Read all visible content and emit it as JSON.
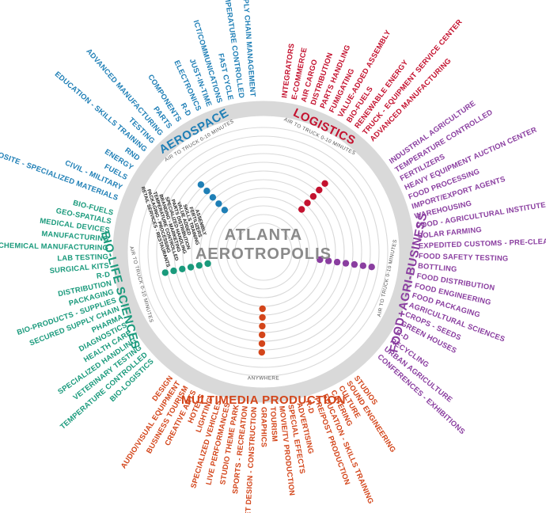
{
  "center": {
    "line1": "ATLANTA",
    "line2": "AEROTROPOLIS"
  },
  "colors": {
    "aerospace": "#1f7fb6",
    "logistics": "#c4122f",
    "food": "#8a3ea0",
    "multimedia": "#d3451a",
    "biolife": "#1a9a7c",
    "ring": "#d9d9d9",
    "inner_label": "#222222"
  },
  "sections": [
    {
      "key": "aerospace",
      "title": "AEROSPACE",
      "subtitle": "AIR TO TRUCK 0-10 MINUTES",
      "dots": 5,
      "labels": [
        "COMPOSITE - SPECIALIZED MATERIALS",
        "CIVIL - MILITARY",
        "FUELS",
        "ENERGY",
        "RND",
        "EDUCATION - SKILLS TRAINING",
        "TESTING",
        "ADVANCED MANUFACTURING",
        "PARTS",
        "COMPONENTS",
        "R-D",
        "ELECTRONICS",
        "JUST-IN-TIME",
        "ICT/COMMUNICATIONS",
        "FAST CYCLE",
        "TEMPERATURE CONTROLLED",
        "SUPPLY CHAIN MANAGEMENT"
      ]
    },
    {
      "key": "logistics",
      "title": "LOGISTICS",
      "subtitle": "AIR TO TRUCK 0-10 MINUTES",
      "dots": 5,
      "labels": [
        "INTEGRATORS",
        "E-COMMERCE",
        "AIR CARGO",
        "DISTRIBUTION",
        "PARTS HANDLING",
        "FUMIGATING",
        "VALUE-ADDED ASSEMBLY",
        "BIO-FUELS",
        "RENEWABLE ENERGY",
        "TRUCK - EQUIPMENT SERVICE CENTER",
        "ADVANCED MANUFACTURING"
      ]
    },
    {
      "key": "food",
      "title": "FOOD+AGRI-BUSINESS",
      "subtitle": "AIR TO TRUCK 0-10 MINUTES",
      "dots": 7,
      "labels": [
        "INDUSTRIAL AGRICULTURE",
        "TEMPERATURE CONTROLLED",
        "FERTILIZERS",
        "HEAVY EQUIPMENT AUCTION CENTER",
        "FOOD PROCESSING",
        "IMPORT/EXPORT AGENTS",
        "WAREHOUSING",
        "FOOD - AGRICULTURAL INSTITUTE",
        "SOLAR FARMING",
        "EXPEDITED CUSTOMS - PRE-CLEARANCE",
        "FOOD SAFETY TESTING",
        "BOTTLING",
        "FOOD DISTRIBUTION",
        "FOOD ENGINEERING",
        "FOOD PACKAGING",
        "AGRICULTURAL SCIENCES",
        "CROPS - SEEDS",
        "GREEN HOUSES",
        "R-D",
        "RECYCLING",
        "URBAN AGRICULTURE",
        "CONFERENCES - EXHIBITIONS"
      ]
    },
    {
      "key": "multimedia",
      "title": "MULTIMEDIA PRODUCTION",
      "subtitle": "ANYWHERE",
      "dots": 6,
      "labels": [
        "STUDIOS",
        "SOUND ENGINEERING",
        "CULTURE",
        "CATERING",
        "EDUCATION - SKILLS TRAINING",
        "PRE/POST PRODUCTION",
        "R-D",
        "ADVERTISING",
        "SPECIAL EFFECTS",
        "MOVIE/TV PRODUCTION",
        "TOURISM",
        "GRAPHICS",
        "SET DESIGN - CONSTRUCTION",
        "SPORTS - RECREATION",
        "STUDIO THEME PARK",
        "LIVE PERFORMANCES",
        "SPECIALIZED VEHICLES",
        "LIGHTING",
        "HOTELS",
        "CREATIVE ARTS",
        "BUSINESS TOURISM",
        "AUDIO/VISUAL EQUIPMENT",
        "DESIGN"
      ]
    },
    {
      "key": "biolife",
      "title": "BIO-LIFE SCIENCES",
      "subtitle": "AIR TO TRUCK 0-10 MINUTES",
      "dots": 6,
      "labels": [
        "BIO-LOGISTICS",
        "TEMPERATURE CONTROLLED",
        "VETERINARY TESTING",
        "SPECIALIZED HANDLING",
        "HEALTH CARE",
        "DIAGNOSTICS",
        "PHARMA",
        "SECURED SUPPLY CHAIN",
        "BIO-PRODUCTS - SUPPLIES",
        "PACKAGING",
        "DISTRIBUTION",
        "R-D",
        "SURGICAL KITS",
        "LAB TESTING",
        "CHEMICAL MANUFACTURING",
        "MANUFACTURING",
        "MEDICAL DEVICES",
        "GEO-SPATIALS",
        "BIO-FUELS"
      ]
    }
  ],
  "inner_labels": [
    "RETAIL SERVICES - RESTAURANTS",
    "PACKAGING - PROCESSING",
    "TEMPERATURE CONTROLLED",
    "BRANDING - MARKETING",
    "SPECIALIZED HANDLING",
    "PARTS DISTRIBUTION",
    "VALUE ADDED",
    "SKILLS TRAINING",
    "FERTILIZERS",
    "ASSEMBLY"
  ]
}
